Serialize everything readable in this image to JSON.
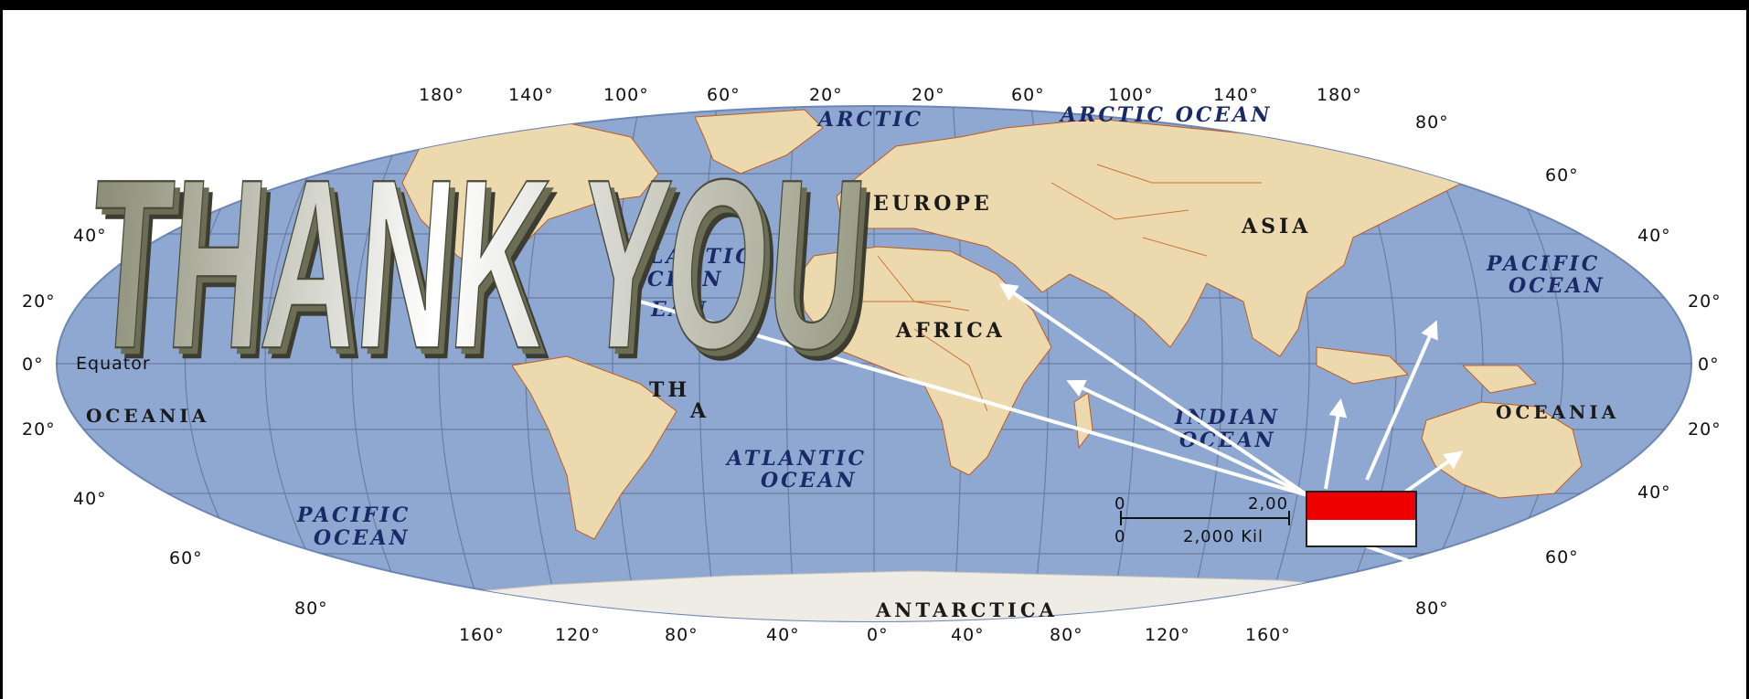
{
  "title": "THANK YOU",
  "colors": {
    "ocean": "#8fa8d2",
    "land": "#ecd9ae",
    "border": "#c05a1c",
    "arrow": "#ffffff",
    "flag_top": "#ee0000",
    "flag_bottom": "#ffffff"
  },
  "top_longitudes": [
    "180°",
    "140°",
    "100°",
    "60°",
    "20°",
    "20°",
    "60°",
    "100°",
    "140°",
    "180°"
  ],
  "bottom_longitudes": [
    "160°",
    "120°",
    "80°",
    "40°",
    "0°",
    "40°",
    "80°",
    "120°",
    "160°"
  ],
  "left_latitudes": [
    "40°",
    "20°",
    "0°",
    "20°",
    "40°",
    "60°",
    "80°"
  ],
  "right_latitudes": [
    "80°",
    "60°",
    "40°",
    "20°",
    "0°",
    "20°",
    "40°",
    "60°",
    "80°"
  ],
  "equator_label": "Equator",
  "regions": {
    "arctic": "ARCTIC",
    "arctic_ocean": "ARCTIC OCEAN",
    "europe": "EUROPE",
    "asia": "ASIA",
    "africa": "AFRICA",
    "atlantic_n1": "LANTIC",
    "atlantic_n2": "CEAN",
    "atlantic_n3": "EAN",
    "south_america_1": "TH",
    "south_america_2": "A",
    "atlantic_s1": "ATLANTIC",
    "atlantic_s2": "OCEAN",
    "indian_1": "INDIAN",
    "indian_2": "OCEAN",
    "pacific_e1": "PACIFIC",
    "pacific_e2": "OCEAN",
    "pacific_w1": "PACIFIC",
    "pacific_w2": "OCEAN",
    "oceania_w": "OCEANIA",
    "oceania_e": "OCEANIA",
    "antarctica": "ANTARCTICA"
  },
  "scale_bar": {
    "top_zero": "0",
    "top_value": "2,00",
    "bottom_zero": "0",
    "bottom_value": "2,000 Kil"
  }
}
